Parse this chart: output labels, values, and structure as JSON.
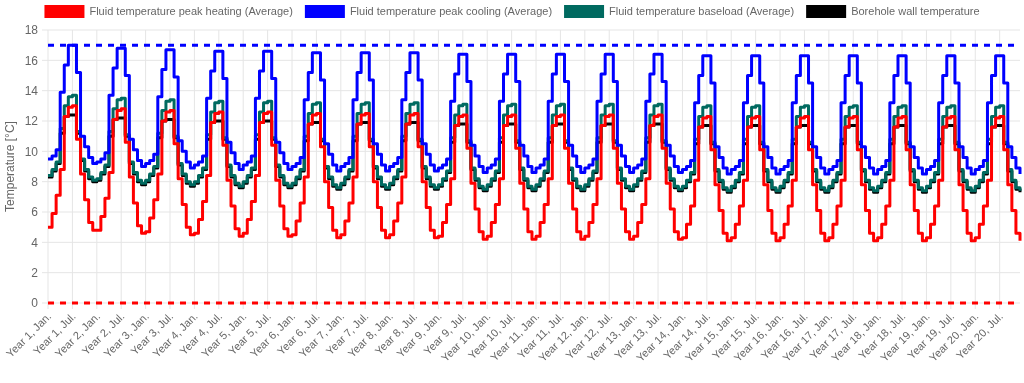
{
  "chart_data": {
    "type": "step",
    "ylabel": "Temperature [°C]",
    "ylim": [
      0,
      18
    ],
    "yticks": [
      0,
      2,
      4,
      6,
      8,
      10,
      12,
      14,
      16,
      18
    ],
    "grid": true,
    "legend": "top",
    "line_style": "solid",
    "categories": [
      "Year 1, Jan.",
      null,
      null,
      null,
      null,
      null,
      "Year 1, Jul.",
      null,
      null,
      null,
      null,
      null,
      "Year 2, Jan.",
      null,
      null,
      null,
      null,
      null,
      "Year 2, Jul.",
      null,
      null,
      null,
      null,
      null,
      "Year 3, Jan.",
      null,
      null,
      null,
      null,
      null,
      "Year 3, Jul.",
      null,
      null,
      null,
      null,
      null,
      "Year 4, Jan.",
      null,
      null,
      null,
      null,
      null,
      "Year 4, Jul.",
      null,
      null,
      null,
      null,
      null,
      "Year 5, Jan.",
      null,
      null,
      null,
      null,
      null,
      "Year 5, Jul.",
      null,
      null,
      null,
      null,
      null,
      "Year 6, Jan.",
      null,
      null,
      null,
      null,
      null,
      "Year 6, Jul.",
      null,
      null,
      null,
      null,
      null,
      "Year 7, Jan.",
      null,
      null,
      null,
      null,
      null,
      "Year 7, Jul.",
      null,
      null,
      null,
      null,
      null,
      "Year 8, Jan.",
      null,
      null,
      null,
      null,
      null,
      "Year 8, Jul.",
      null,
      null,
      null,
      null,
      null,
      "Year 9, Jan.",
      null,
      null,
      null,
      null,
      null,
      "Year 9, Jul.",
      null,
      null,
      null,
      null,
      null,
      "Year 10, Jan.",
      null,
      null,
      null,
      null,
      null,
      "Year 10, Jul.",
      null,
      null,
      null,
      null,
      null,
      "Year 11, Jan.",
      null,
      null,
      null,
      null,
      null,
      "Year 11, Jul.",
      null,
      null,
      null,
      null,
      null,
      "Year 12, Jan.",
      null,
      null,
      null,
      null,
      null,
      "Year 12, Jul.",
      null,
      null,
      null,
      null,
      null,
      "Year 13, Jan.",
      null,
      null,
      null,
      null,
      null,
      "Year 13, Jul.",
      null,
      null,
      null,
      null,
      null,
      "Year 14, Jan.",
      null,
      null,
      null,
      null,
      null,
      "Year 14, Jul.",
      null,
      null,
      null,
      null,
      null,
      "Year 15, Jan.",
      null,
      null,
      null,
      null,
      null,
      "Year 15, Jul.",
      null,
      null,
      null,
      null,
      null,
      "Year 16, Jan.",
      null,
      null,
      null,
      null,
      null,
      "Year 16, Jul.",
      null,
      null,
      null,
      null,
      null,
      "Year 17, Jan.",
      null,
      null,
      null,
      null,
      null,
      "Year 17, Jul.",
      null,
      null,
      null,
      null,
      null,
      "Year 18, Jan.",
      null,
      null,
      null,
      null,
      null,
      "Year 18, Jul.",
      null,
      null,
      null,
      null,
      null,
      "Year 19, Jan.",
      null,
      null,
      null,
      null,
      null,
      "Year 19, Jul.",
      null,
      null,
      null,
      null,
      null,
      "Year 20, Jan.",
      null,
      null,
      null,
      null,
      null,
      "Year 20, Jul.",
      null,
      null,
      null,
      null,
      null
    ],
    "series": [
      {
        "name": "Fluid temperature peak heating (Average)",
        "color": "#ff0000",
        "values": [
          5.0,
          5.9,
          7.1,
          8.8,
          12.3,
          12.9,
          13.0,
          10.8,
          8.5,
          6.8,
          5.3,
          4.8,
          4.8,
          5.7,
          6.9,
          8.6,
          12.1,
          12.7,
          12.8,
          10.6,
          8.3,
          6.6,
          5.1,
          4.6,
          4.7,
          5.6,
          6.8,
          8.5,
          12.0,
          12.6,
          12.7,
          10.5,
          8.2,
          6.5,
          5.0,
          4.5,
          4.6,
          5.5,
          6.7,
          8.4,
          11.9,
          12.5,
          12.6,
          10.4,
          8.1,
          6.4,
          4.9,
          4.4,
          4.6,
          5.5,
          6.7,
          8.4,
          11.9,
          12.5,
          12.6,
          10.4,
          8.1,
          6.4,
          4.9,
          4.4,
          4.5,
          5.4,
          6.6,
          8.3,
          11.8,
          12.4,
          12.5,
          10.3,
          8.0,
          6.3,
          4.8,
          4.3,
          4.5,
          5.4,
          6.6,
          8.3,
          11.8,
          12.4,
          12.5,
          10.3,
          8.0,
          6.3,
          4.8,
          4.3,
          4.5,
          5.4,
          6.6,
          8.3,
          11.8,
          12.4,
          12.5,
          10.3,
          8.0,
          6.3,
          4.8,
          4.3,
          4.4,
          5.3,
          6.5,
          8.2,
          11.7,
          12.3,
          12.4,
          10.2,
          7.9,
          6.2,
          4.7,
          4.2,
          4.4,
          5.3,
          6.5,
          8.2,
          11.7,
          12.3,
          12.4,
          10.2,
          7.9,
          6.2,
          4.7,
          4.2,
          4.4,
          5.3,
          6.5,
          8.2,
          11.7,
          12.3,
          12.4,
          10.2,
          7.9,
          6.2,
          4.7,
          4.2,
          4.4,
          5.3,
          6.5,
          8.2,
          11.7,
          12.3,
          12.4,
          10.2,
          7.9,
          6.2,
          4.7,
          4.2,
          4.4,
          5.3,
          6.5,
          8.2,
          11.7,
          12.3,
          12.4,
          10.2,
          7.9,
          6.2,
          4.7,
          4.2,
          4.3,
          5.2,
          6.4,
          8.1,
          11.6,
          12.2,
          12.3,
          10.1,
          7.8,
          6.1,
          4.6,
          4.1,
          4.3,
          5.2,
          6.4,
          8.1,
          11.6,
          12.2,
          12.3,
          10.1,
          7.8,
          6.1,
          4.6,
          4.1,
          4.3,
          5.2,
          6.4,
          8.1,
          11.6,
          12.2,
          12.3,
          10.1,
          7.8,
          6.1,
          4.6,
          4.1,
          4.3,
          5.2,
          6.4,
          8.1,
          11.6,
          12.2,
          12.3,
          10.1,
          7.8,
          6.1,
          4.6,
          4.1,
          4.3,
          5.2,
          6.4,
          8.1,
          11.6,
          12.2,
          12.3,
          10.1,
          7.8,
          6.1,
          4.6,
          4.1,
          4.3,
          5.2,
          6.4,
          8.1,
          11.6,
          12.2,
          12.3,
          10.1,
          7.8,
          6.1,
          4.6,
          4.1,
          4.3,
          5.2,
          6.4,
          8.1,
          11.6,
          12.2,
          12.3,
          10.1,
          7.8,
          6.1,
          4.6,
          4.1
        ]
      },
      {
        "name": "Fluid temperature peak cooling (Average)",
        "color": "#0000ff",
        "values": [
          9.5,
          9.7,
          10.1,
          13.9,
          15.7,
          17.0,
          17.0,
          15.2,
          11.0,
          10.3,
          9.6,
          9.2,
          9.3,
          9.5,
          9.9,
          13.7,
          15.5,
          16.8,
          16.8,
          15.0,
          10.8,
          10.1,
          9.4,
          9.0,
          9.2,
          9.4,
          9.8,
          13.6,
          15.4,
          16.7,
          16.7,
          14.9,
          10.7,
          10.0,
          9.3,
          8.9,
          9.1,
          9.3,
          9.7,
          13.5,
          15.3,
          16.6,
          16.6,
          14.8,
          10.6,
          9.9,
          9.2,
          8.8,
          9.1,
          9.3,
          9.7,
          13.5,
          15.3,
          16.6,
          16.6,
          14.8,
          10.6,
          9.9,
          9.2,
          8.8,
          9.0,
          9.2,
          9.6,
          13.4,
          15.2,
          16.5,
          16.5,
          14.7,
          10.5,
          9.8,
          9.1,
          8.7,
          9.0,
          9.2,
          9.6,
          13.4,
          15.2,
          16.5,
          16.5,
          14.7,
          10.5,
          9.8,
          9.1,
          8.7,
          9.0,
          9.2,
          9.6,
          13.4,
          15.2,
          16.5,
          16.5,
          14.7,
          10.5,
          9.8,
          9.1,
          8.7,
          8.9,
          9.1,
          9.5,
          13.3,
          15.1,
          16.4,
          16.4,
          14.6,
          10.4,
          9.7,
          9.0,
          8.6,
          8.9,
          9.1,
          9.5,
          13.3,
          15.1,
          16.4,
          16.4,
          14.6,
          10.4,
          9.7,
          9.0,
          8.6,
          8.9,
          9.1,
          9.5,
          13.3,
          15.1,
          16.4,
          16.4,
          14.6,
          10.4,
          9.7,
          9.0,
          8.6,
          8.9,
          9.1,
          9.5,
          13.3,
          15.1,
          16.4,
          16.4,
          14.6,
          10.4,
          9.7,
          9.0,
          8.6,
          8.9,
          9.1,
          9.5,
          13.3,
          15.1,
          16.4,
          16.4,
          14.6,
          10.4,
          9.7,
          9.0,
          8.6,
          8.8,
          9.0,
          9.4,
          13.2,
          15.0,
          16.3,
          16.3,
          14.5,
          10.3,
          9.6,
          8.9,
          8.5,
          8.8,
          9.0,
          9.4,
          13.2,
          15.0,
          16.3,
          16.3,
          14.5,
          10.3,
          9.6,
          8.9,
          8.5,
          8.8,
          9.0,
          9.4,
          13.2,
          15.0,
          16.3,
          16.3,
          14.5,
          10.3,
          9.6,
          8.9,
          8.5,
          8.8,
          9.0,
          9.4,
          13.2,
          15.0,
          16.3,
          16.3,
          14.5,
          10.3,
          9.6,
          8.9,
          8.5,
          8.8,
          9.0,
          9.4,
          13.2,
          15.0,
          16.3,
          16.3,
          14.5,
          10.3,
          9.6,
          8.9,
          8.5,
          8.8,
          9.0,
          9.4,
          13.2,
          15.0,
          16.3,
          16.3,
          14.5,
          10.3,
          9.6,
          8.9,
          8.5,
          8.8,
          9.0,
          9.4,
          13.2,
          15.0,
          16.3,
          16.3,
          14.5,
          10.3,
          9.6,
          8.9,
          8.5
        ]
      },
      {
        "name": "Fluid temperature baseload (Average)",
        "color": "#006a60",
        "values": [
          8.4,
          8.8,
          9.3,
          11.5,
          13.0,
          13.6,
          13.7,
          11.3,
          9.5,
          8.8,
          8.3,
          8.1,
          8.2,
          8.6,
          9.1,
          11.3,
          12.8,
          13.4,
          13.5,
          11.1,
          9.3,
          8.6,
          8.1,
          7.9,
          8.1,
          8.5,
          9.0,
          11.2,
          12.7,
          13.3,
          13.4,
          11.0,
          9.2,
          8.5,
          8.0,
          7.8,
          8.0,
          8.4,
          8.9,
          11.1,
          12.6,
          13.2,
          13.3,
          10.9,
          9.1,
          8.4,
          7.9,
          7.7,
          8.0,
          8.4,
          8.9,
          11.1,
          12.6,
          13.2,
          13.3,
          10.9,
          9.1,
          8.4,
          7.9,
          7.7,
          7.9,
          8.3,
          8.8,
          11.0,
          12.5,
          13.1,
          13.2,
          10.8,
          9.0,
          8.3,
          7.8,
          7.6,
          7.9,
          8.3,
          8.8,
          11.0,
          12.5,
          13.1,
          13.2,
          10.8,
          9.0,
          8.3,
          7.8,
          7.6,
          7.9,
          8.3,
          8.8,
          11.0,
          12.5,
          13.1,
          13.2,
          10.8,
          9.0,
          8.3,
          7.8,
          7.6,
          7.8,
          8.2,
          8.7,
          10.9,
          12.4,
          13.0,
          13.1,
          10.7,
          8.9,
          8.2,
          7.7,
          7.5,
          7.8,
          8.2,
          8.7,
          10.9,
          12.4,
          13.0,
          13.1,
          10.7,
          8.9,
          8.2,
          7.7,
          7.5,
          7.8,
          8.2,
          8.7,
          10.9,
          12.4,
          13.0,
          13.1,
          10.7,
          8.9,
          8.2,
          7.7,
          7.5,
          7.8,
          8.2,
          8.7,
          10.9,
          12.4,
          13.0,
          13.1,
          10.7,
          8.9,
          8.2,
          7.7,
          7.5,
          7.8,
          8.2,
          8.7,
          10.9,
          12.4,
          13.0,
          13.1,
          10.7,
          8.9,
          8.2,
          7.7,
          7.5,
          7.7,
          8.1,
          8.6,
          10.8,
          12.3,
          12.9,
          13.0,
          10.6,
          8.8,
          8.1,
          7.6,
          7.4,
          7.7,
          8.1,
          8.6,
          10.8,
          12.3,
          12.9,
          13.0,
          10.6,
          8.8,
          8.1,
          7.6,
          7.4,
          7.7,
          8.1,
          8.6,
          10.8,
          12.3,
          12.9,
          13.0,
          10.6,
          8.8,
          8.1,
          7.6,
          7.4,
          7.7,
          8.1,
          8.6,
          10.8,
          12.3,
          12.9,
          13.0,
          10.6,
          8.8,
          8.1,
          7.6,
          7.4,
          7.7,
          8.1,
          8.6,
          10.8,
          12.3,
          12.9,
          13.0,
          10.6,
          8.8,
          8.1,
          7.6,
          7.4,
          7.7,
          8.1,
          8.6,
          10.8,
          12.3,
          12.9,
          13.0,
          10.6,
          8.8,
          8.1,
          7.6,
          7.4,
          7.7,
          8.1,
          8.6,
          10.8,
          12.3,
          12.9,
          13.0,
          10.6,
          8.8,
          8.1,
          7.6,
          7.4
        ]
      },
      {
        "name": "Borehole wall temperature",
        "color": "#000000",
        "values": [
          8.3,
          8.7,
          9.2,
          11.2,
          12.3,
          12.4,
          12.4,
          11.2,
          9.4,
          8.7,
          8.2,
          8.0,
          8.1,
          8.5,
          9.0,
          11.0,
          12.1,
          12.2,
          12.2,
          11.0,
          9.2,
          8.5,
          8.0,
          7.8,
          8.0,
          8.4,
          8.9,
          10.9,
          12.0,
          12.1,
          12.1,
          10.9,
          9.1,
          8.4,
          7.9,
          7.7,
          7.9,
          8.3,
          8.8,
          10.8,
          11.9,
          12.0,
          12.0,
          10.8,
          9.0,
          8.3,
          7.8,
          7.6,
          7.9,
          8.3,
          8.8,
          10.8,
          11.9,
          12.0,
          12.0,
          10.8,
          9.0,
          8.3,
          7.8,
          7.6,
          7.8,
          8.2,
          8.7,
          10.7,
          11.8,
          11.9,
          11.9,
          10.7,
          8.9,
          8.2,
          7.7,
          7.5,
          7.8,
          8.2,
          8.7,
          10.7,
          11.8,
          11.9,
          11.9,
          10.7,
          8.9,
          8.2,
          7.7,
          7.5,
          7.8,
          8.2,
          8.7,
          10.7,
          11.8,
          11.9,
          11.9,
          10.7,
          8.9,
          8.2,
          7.7,
          7.5,
          7.7,
          8.1,
          8.6,
          10.6,
          11.7,
          11.8,
          11.8,
          10.6,
          8.8,
          8.1,
          7.6,
          7.4,
          7.7,
          8.1,
          8.6,
          10.6,
          11.7,
          11.8,
          11.8,
          10.6,
          8.8,
          8.1,
          7.6,
          7.4,
          7.7,
          8.1,
          8.6,
          10.6,
          11.7,
          11.8,
          11.8,
          10.6,
          8.8,
          8.1,
          7.6,
          7.4,
          7.7,
          8.1,
          8.6,
          10.6,
          11.7,
          11.8,
          11.8,
          10.6,
          8.8,
          8.1,
          7.6,
          7.4,
          7.7,
          8.1,
          8.6,
          10.6,
          11.7,
          11.8,
          11.8,
          10.6,
          8.8,
          8.1,
          7.6,
          7.4,
          7.6,
          8.0,
          8.5,
          10.5,
          11.6,
          11.7,
          11.7,
          10.5,
          8.7,
          8.0,
          7.5,
          7.3,
          7.6,
          8.0,
          8.5,
          10.5,
          11.6,
          11.7,
          11.7,
          10.5,
          8.7,
          8.0,
          7.5,
          7.3,
          7.6,
          8.0,
          8.5,
          10.5,
          11.6,
          11.7,
          11.7,
          10.5,
          8.7,
          8.0,
          7.5,
          7.3,
          7.6,
          8.0,
          8.5,
          10.5,
          11.6,
          11.7,
          11.7,
          10.5,
          8.7,
          8.0,
          7.5,
          7.3,
          7.6,
          8.0,
          8.5,
          10.5,
          11.6,
          11.7,
          11.7,
          10.5,
          8.7,
          8.0,
          7.5,
          7.3,
          7.6,
          8.0,
          8.5,
          10.5,
          11.6,
          11.7,
          11.7,
          10.5,
          8.7,
          8.0,
          7.5,
          7.3,
          7.6,
          8.0,
          8.5,
          10.5,
          11.6,
          11.7,
          11.7,
          10.5,
          8.7,
          8.0,
          7.5,
          7.3
        ]
      }
    ],
    "ref_lines": [
      {
        "axis": "y",
        "value": 17,
        "color": "#0000ff",
        "line_style": "dashed"
      },
      {
        "axis": "y",
        "value": 0,
        "color": "#ff0000",
        "line_style": "dashed"
      }
    ]
  }
}
